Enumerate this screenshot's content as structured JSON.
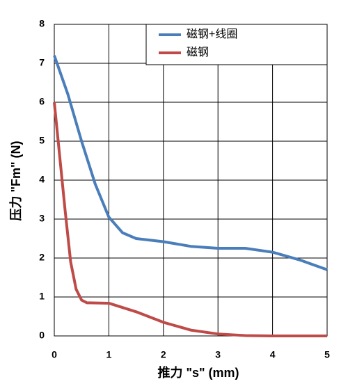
{
  "chart_data": {
    "type": "line",
    "x_label": "推力 \"s\" (mm)",
    "y_label": "压力 \"Fm\" (N)",
    "xlim": [
      0,
      5
    ],
    "xticks": [
      0,
      1,
      2,
      3,
      4,
      5
    ],
    "ylim": [
      0,
      8
    ],
    "yticks": [
      0,
      1,
      2,
      3,
      4,
      5,
      6,
      7,
      8
    ],
    "grid": true,
    "legend": "upper right",
    "series": [
      {
        "name": "磁钢+线圈",
        "color": "#4a7ebb",
        "x": [
          0,
          0.25,
          0.5,
          0.75,
          1,
          1.25,
          1.5,
          2,
          2.5,
          3,
          3.5,
          4,
          4.5,
          5
        ],
        "values": [
          7.2,
          6.2,
          5.0,
          3.9,
          3.05,
          2.65,
          2.5,
          2.42,
          2.3,
          2.25,
          2.25,
          2.15,
          1.95,
          1.7
        ]
      },
      {
        "name": "磁钢",
        "color": "#be4b48",
        "x": [
          0,
          0.1,
          0.2,
          0.3,
          0.4,
          0.5,
          0.6,
          1,
          1.5,
          2,
          2.5,
          3,
          3.5,
          4,
          5
        ],
        "values": [
          6.0,
          4.6,
          3.2,
          1.9,
          1.2,
          0.92,
          0.85,
          0.84,
          0.62,
          0.35,
          0.15,
          0.05,
          0.01,
          0,
          0
        ]
      }
    ]
  }
}
